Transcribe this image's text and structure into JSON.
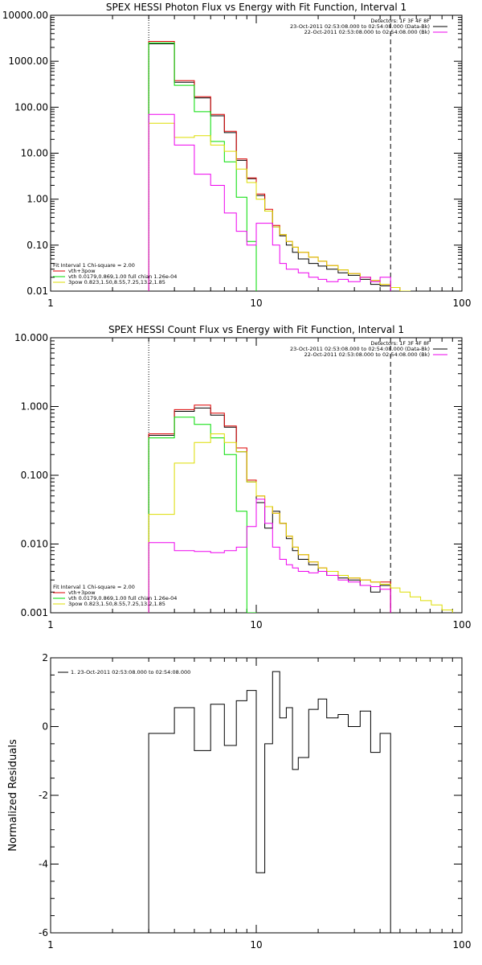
{
  "chart_data": [
    {
      "type": "line",
      "title": "SPEX HESSI Photon Flux vs Energy with Fit Function, Interval 1",
      "xscale": "log",
      "yscale": "log",
      "xlim": [
        1,
        100
      ],
      "ylim": [
        0.01,
        10000
      ],
      "xticks": [
        1,
        10,
        100
      ],
      "xtick_labels": [
        "1",
        "10",
        "100"
      ],
      "yticks": [
        0.01,
        0.1,
        1,
        10,
        100,
        1000,
        10000
      ],
      "ytick_labels": [
        "0.01",
        "0.10",
        "1.00",
        "10.00",
        "100.00",
        "1000.00",
        "10000.00"
      ],
      "vlines": [
        {
          "x": 3,
          "style": "dotted"
        },
        {
          "x": 45,
          "style": "dashed"
        }
      ],
      "legend_top": [
        "Detectors: 1F 3F 4F 8F",
        "23-Oct-2011 02:53:08.000 to 02:54:08.000 (Data-Bk)",
        "22-Oct-2011 02:53:08.000 to 02:54:08.000 (Bk)"
      ],
      "legend_top_colors": [
        "#ffffff",
        "#000000",
        "#ee00ee"
      ],
      "legend_bottom": [
        "Fit Interval 1   Chi-square = 2.00",
        "vth+3pow",
        "vth 0.0179,0.869,1.00  full chian 1.26e-04",
        "3pow 0.823,1.50,8.55,7.25,13.2,1.85"
      ],
      "legend_bottom_colors": [
        "#ffffff",
        "#dd0000",
        "#00dd00",
        "#dddd00"
      ],
      "series": [
        {
          "name": "Data-Bk",
          "color": "#000000",
          "edges": [
            3,
            4,
            5,
            6,
            7,
            8,
            9,
            10,
            11,
            12,
            13,
            14,
            15,
            16,
            18,
            20,
            22,
            25,
            28,
            32,
            36,
            40,
            45
          ],
          "values": [
            2400,
            350,
            160,
            65,
            28,
            7.0,
            2.8,
            1.2,
            0.55,
            0.25,
            0.16,
            0.1,
            0.07,
            0.05,
            0.04,
            0.035,
            0.03,
            0.025,
            0.022,
            0.018,
            0.014,
            0.013
          ]
        },
        {
          "name": "vth+3pow",
          "color": "#dd0000",
          "edges": [
            3,
            4,
            5,
            6,
            7,
            8,
            9,
            10,
            11,
            12,
            13,
            14,
            15,
            16,
            18,
            20,
            22,
            25,
            28,
            32,
            36,
            40,
            45,
            50,
            56
          ],
          "values": [
            2700,
            380,
            170,
            70,
            30,
            7.5,
            2.9,
            1.3,
            0.6,
            0.27,
            0.17,
            0.12,
            0.09,
            0.07,
            0.055,
            0.045,
            0.036,
            0.029,
            0.024,
            0.02,
            0.017,
            0.014,
            0.012,
            0.01
          ]
        },
        {
          "name": "vth",
          "color": "#00dd00",
          "edges": [
            3,
            4,
            5,
            6,
            7,
            8,
            9,
            10
          ],
          "values": [
            2500,
            300,
            80,
            18,
            6.5,
            1.1,
            0.12
          ]
        },
        {
          "name": "3pow",
          "color": "#dddd00",
          "edges": [
            3,
            4,
            5,
            6,
            7,
            8,
            9,
            10,
            11,
            12,
            13,
            14,
            15,
            16,
            18,
            20,
            22,
            25,
            28,
            32,
            36,
            40,
            45,
            50,
            56
          ],
          "values": [
            45,
            22,
            24,
            15,
            11,
            4.5,
            2.3,
            1.0,
            0.55,
            0.25,
            0.17,
            0.12,
            0.09,
            0.07,
            0.055,
            0.045,
            0.036,
            0.029,
            0.024,
            0.02,
            0.017,
            0.014,
            0.012,
            0.01
          ]
        },
        {
          "name": "Bk",
          "color": "#ee00ee",
          "edges": [
            3,
            4,
            5,
            6,
            7,
            8,
            9,
            10,
            11,
            12,
            13,
            14,
            15,
            16,
            18,
            20,
            22,
            25,
            28,
            32,
            36,
            40,
            45
          ],
          "values": [
            70,
            15,
            3.5,
            2.0,
            0.5,
            0.2,
            0.1,
            0.3,
            0.3,
            0.1,
            0.04,
            0.03,
            0.03,
            0.025,
            0.02,
            0.018,
            0.016,
            0.018,
            0.016,
            0.02,
            0.016,
            0.02
          ]
        }
      ]
    },
    {
      "type": "line",
      "title": "SPEX HESSI Count Flux vs Energy with Fit Function, Interval 1",
      "xscale": "log",
      "yscale": "log",
      "xlim": [
        1,
        100
      ],
      "ylim": [
        0.001,
        10
      ],
      "xticks": [
        1,
        10,
        100
      ],
      "xtick_labels": [
        "1",
        "10",
        "100"
      ],
      "yticks": [
        0.001,
        0.01,
        0.1,
        1,
        10
      ],
      "ytick_labels": [
        "0.001",
        "0.010",
        "0.100",
        "1.000",
        "10.000"
      ],
      "vlines": [
        {
          "x": 3,
          "style": "dotted"
        },
        {
          "x": 45,
          "style": "dashed"
        }
      ],
      "legend_top": [
        "Detectors: 1F 3F 4F 8F",
        "23-Oct-2011 02:53:08.000 to 02:54:08.000 (Data-Bk)",
        "22-Oct-2011 02:53:08.000 to 02:54:08.000 (Bk)"
      ],
      "legend_top_colors": [
        "#ffffff",
        "#000000",
        "#ee00ee"
      ],
      "legend_bottom": [
        "Fit Interval 1   Chi-square = 2.00",
        "vth+3pow",
        "vth 0.0179,0.869,1.00  full chian 1.26e-04",
        "3pow 0.823,1.50,8.55,7.25,13.2,1.85"
      ],
      "legend_bottom_colors": [
        "#ffffff",
        "#dd0000",
        "#00dd00",
        "#dddd00"
      ],
      "series": [
        {
          "name": "Data-Bk",
          "color": "#000000",
          "edges": [
            3,
            4,
            5,
            6,
            7,
            8,
            9,
            10,
            11,
            12,
            13,
            14,
            15,
            16,
            18,
            20,
            22,
            25,
            28,
            32,
            36,
            40,
            45
          ],
          "values": [
            0.38,
            0.85,
            0.95,
            0.75,
            0.5,
            0.22,
            0.08,
            0.04,
            0.017,
            0.03,
            0.02,
            0.012,
            0.008,
            0.006,
            0.005,
            0.004,
            0.0035,
            0.0032,
            0.003,
            0.0025,
            0.002,
            0.0025
          ]
        },
        {
          "name": "vth+3pow",
          "color": "#dd0000",
          "edges": [
            3,
            4,
            5,
            6,
            7,
            8,
            9,
            10,
            11,
            12,
            13,
            14,
            15,
            16,
            18,
            20,
            22,
            25,
            28,
            32,
            36,
            40,
            45
          ],
          "values": [
            0.4,
            0.9,
            1.05,
            0.8,
            0.52,
            0.25,
            0.085,
            0.05,
            0.035,
            0.028,
            0.02,
            0.013,
            0.009,
            0.007,
            0.0055,
            0.0045,
            0.004,
            0.0035,
            0.0032,
            0.003,
            0.0028,
            0.0028
          ]
        },
        {
          "name": "vth",
          "color": "#00dd00",
          "edges": [
            3,
            4,
            5,
            6,
            7,
            8,
            9,
            10
          ],
          "values": [
            0.35,
            0.7,
            0.55,
            0.35,
            0.2,
            0.03,
            0.001
          ]
        },
        {
          "name": "3pow",
          "color": "#dddd00",
          "edges": [
            3,
            4,
            5,
            6,
            7,
            8,
            9,
            10,
            11,
            12,
            13,
            14,
            15,
            16,
            18,
            20,
            22,
            25,
            28,
            32,
            36,
            40,
            45,
            50,
            56,
            63,
            71,
            80,
            90
          ],
          "values": [
            0.027,
            0.15,
            0.3,
            0.4,
            0.3,
            0.22,
            0.08,
            0.05,
            0.035,
            0.028,
            0.02,
            0.013,
            0.009,
            0.007,
            0.0055,
            0.0045,
            0.004,
            0.0035,
            0.0032,
            0.003,
            0.0028,
            0.0026,
            0.0023,
            0.002,
            0.0017,
            0.0015,
            0.0013,
            0.0011
          ]
        },
        {
          "name": "Bk",
          "color": "#ee00ee",
          "edges": [
            3,
            4,
            5,
            6,
            7,
            8,
            9,
            10,
            11,
            12,
            13,
            14,
            15,
            16,
            18,
            20,
            22,
            25,
            28,
            32,
            36,
            40,
            45
          ],
          "values": [
            0.0105,
            0.008,
            0.0078,
            0.0075,
            0.008,
            0.009,
            0.018,
            0.045,
            0.02,
            0.009,
            0.006,
            0.005,
            0.0045,
            0.004,
            0.0038,
            0.004,
            0.0035,
            0.003,
            0.0028,
            0.0025,
            0.0024,
            0.0022
          ]
        }
      ]
    },
    {
      "type": "line",
      "title": "",
      "ylabel": "Normalized Residuals",
      "xscale": "log",
      "yscale": "linear",
      "xlim": [
        1,
        100
      ],
      "ylim": [
        -6,
        2
      ],
      "xticks": [
        1,
        10,
        100
      ],
      "xtick_labels": [
        "1",
        "10",
        "100"
      ],
      "yticks": [
        -6,
        -4,
        -2,
        0,
        2
      ],
      "ytick_labels": [
        "-6",
        "-4",
        "-2",
        "0",
        "2"
      ],
      "legend": [
        "1. 23-Oct-2011 02:53:08.000 to 02:54:08.000"
      ],
      "series": [
        {
          "name": "1. 23-Oct-2011 02:53:08.000 to 02:54:08.000",
          "color": "#000000",
          "edges": [
            3,
            4,
            5,
            6,
            7,
            8,
            9,
            10,
            11,
            12,
            13,
            14,
            15,
            16,
            18,
            20,
            22,
            25,
            28,
            32,
            36,
            40,
            45
          ],
          "values": [
            -0.2,
            0.55,
            -0.7,
            0.65,
            -0.55,
            0.75,
            1.05,
            -4.25,
            -0.5,
            1.6,
            0.25,
            0.55,
            -1.25,
            -0.9,
            0.5,
            0.8,
            0.25,
            0.35,
            0.0,
            0.45,
            -0.75,
            -0.2
          ]
        }
      ]
    }
  ]
}
